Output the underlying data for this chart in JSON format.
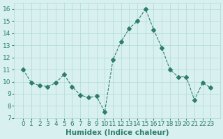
{
  "x": [
    0,
    1,
    2,
    3,
    4,
    5,
    6,
    7,
    8,
    9,
    10,
    11,
    12,
    13,
    14,
    15,
    16,
    17,
    18,
    19,
    20,
    21,
    22,
    23
  ],
  "y": [
    11.0,
    9.9,
    9.7,
    9.6,
    9.9,
    10.6,
    9.6,
    8.9,
    8.7,
    8.8,
    7.5,
    11.8,
    13.3,
    14.4,
    15.0,
    16.0,
    14.3,
    12.8,
    11.0,
    10.4,
    10.4,
    8.5,
    9.9,
    9.5
  ],
  "line_color": "#2e7d6e",
  "marker": "D",
  "marker_size": 3,
  "bg_color": "#d8f0f0",
  "grid_color": "#b0d8d8",
  "xlabel": "Humidex (Indice chaleur)",
  "ylim": [
    7,
    16.5
  ],
  "yticks": [
    7,
    8,
    9,
    10,
    11,
    12,
    13,
    14,
    15,
    16
  ],
  "xticks": [
    0,
    1,
    2,
    3,
    4,
    5,
    6,
    7,
    8,
    9,
    10,
    11,
    12,
    13,
    14,
    15,
    16,
    17,
    18,
    19,
    20,
    21,
    22,
    23
  ],
  "xlabel_fontsize": 7.5,
  "tick_fontsize": 6.5,
  "line_width": 0.8
}
